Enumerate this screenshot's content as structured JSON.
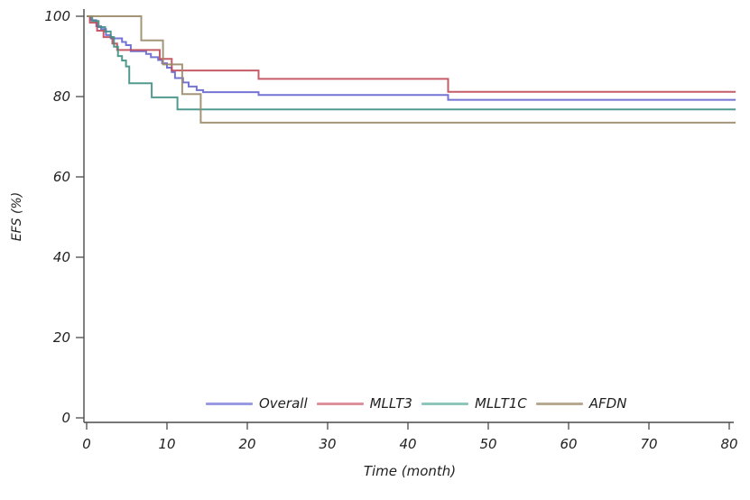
{
  "figure": {
    "background": "#ffffff"
  },
  "axis": {
    "line_color": "#4a4a4a",
    "tick_color": "#4a4a4a",
    "tick_label_color": "#222222",
    "tick_label_style": "handwritten-italic"
  },
  "chart_data": {
    "type": "line",
    "subtype": "kaplan-meier-step",
    "title": "",
    "xlabel": "Time (month)",
    "ylabel": "EFS (%)",
    "xlim": [
      0,
      80
    ],
    "ylim": [
      0,
      100
    ],
    "x_ticks": [
      0,
      10,
      20,
      30,
      40,
      50,
      60,
      70,
      80
    ],
    "y_ticks": [
      0,
      20,
      40,
      60,
      80,
      100
    ],
    "grid": false,
    "legend_position": "bottom-center-inside",
    "x_end": 80.8,
    "series": [
      {
        "name": "Overall",
        "color": "#6565cf",
        "legend_color": "#9a9ae2",
        "points": [
          [
            0,
            100
          ],
          [
            0.5,
            99
          ],
          [
            1.2,
            97.5
          ],
          [
            1.8,
            96.8
          ],
          [
            2.4,
            95.3
          ],
          [
            3,
            94.5
          ],
          [
            4.4,
            93.6
          ],
          [
            4.9,
            92.8
          ],
          [
            5.5,
            91.3
          ],
          [
            7.4,
            90.6
          ],
          [
            8,
            89.8
          ],
          [
            8.9,
            89.1
          ],
          [
            9.4,
            88.3
          ],
          [
            10,
            87.2
          ],
          [
            10.6,
            86.1
          ],
          [
            11,
            84.6
          ],
          [
            12,
            83.5
          ],
          [
            12.7,
            82.5
          ],
          [
            13.7,
            81.6
          ],
          [
            14.5,
            81.1
          ],
          [
            21.4,
            80.4
          ],
          [
            45,
            79.2
          ]
        ]
      },
      {
        "name": "MLLT3",
        "color": "#c04a58",
        "legend_color": "#dc919b",
        "points": [
          [
            0,
            100
          ],
          [
            0.4,
            98.4
          ],
          [
            1.3,
            96.4
          ],
          [
            2.1,
            94.8
          ],
          [
            3.2,
            93.2
          ],
          [
            3.8,
            91.6
          ],
          [
            9.1,
            89.4
          ],
          [
            10.6,
            86.5
          ],
          [
            21.4,
            84.4
          ],
          [
            45,
            81.2
          ]
        ]
      },
      {
        "name": "MLLT1C",
        "color": "#3f8f83",
        "legend_color": "#8fc6bc",
        "points": [
          [
            0,
            100
          ],
          [
            0.7,
            98.8
          ],
          [
            1.5,
            97.3
          ],
          [
            2.3,
            96.2
          ],
          [
            3,
            94.8
          ],
          [
            3.4,
            92.4
          ],
          [
            3.9,
            90.1
          ],
          [
            4.4,
            89
          ],
          [
            4.9,
            87.5
          ],
          [
            5.3,
            83.3
          ],
          [
            8.1,
            79.8
          ],
          [
            11.3,
            76.8
          ]
        ]
      },
      {
        "name": "AFDN",
        "color": "#9a8a68",
        "legend_color": "#b7aa90",
        "points": [
          [
            0,
            100
          ],
          [
            6.8,
            94
          ],
          [
            9.5,
            88
          ],
          [
            11.9,
            80.6
          ],
          [
            14.2,
            73.5
          ]
        ]
      }
    ]
  }
}
